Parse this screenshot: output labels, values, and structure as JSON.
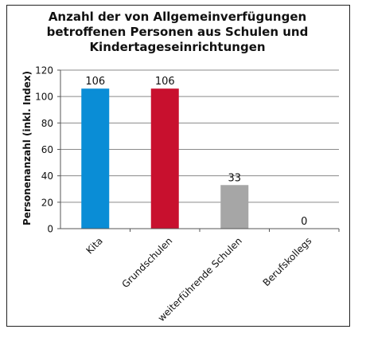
{
  "chart_data": {
    "type": "bar",
    "title_lines": [
      "Anzahl der von Allgemeinverfügungen",
      "betroffenen Personen aus Schulen und",
      "Kindertageseinrichtungen"
    ],
    "xlabel": "",
    "ylabel": "Personenanzahl (inkl. Index)",
    "categories": [
      "Kita",
      "Grundschulen",
      "weiterführende Schulen",
      "Berufskollegs"
    ],
    "values": [
      106,
      106,
      33,
      0
    ],
    "data_labels": [
      "106",
      "106",
      "33",
      "0"
    ],
    "colors": [
      "#0A8DD6",
      "#C8102E",
      "#A6A6A6",
      "#A6A6A6"
    ],
    "ylim": [
      0,
      120
    ],
    "yticks": [
      0,
      20,
      40,
      60,
      80,
      100,
      120
    ],
    "grid": "horizontal",
    "legend": "none"
  }
}
